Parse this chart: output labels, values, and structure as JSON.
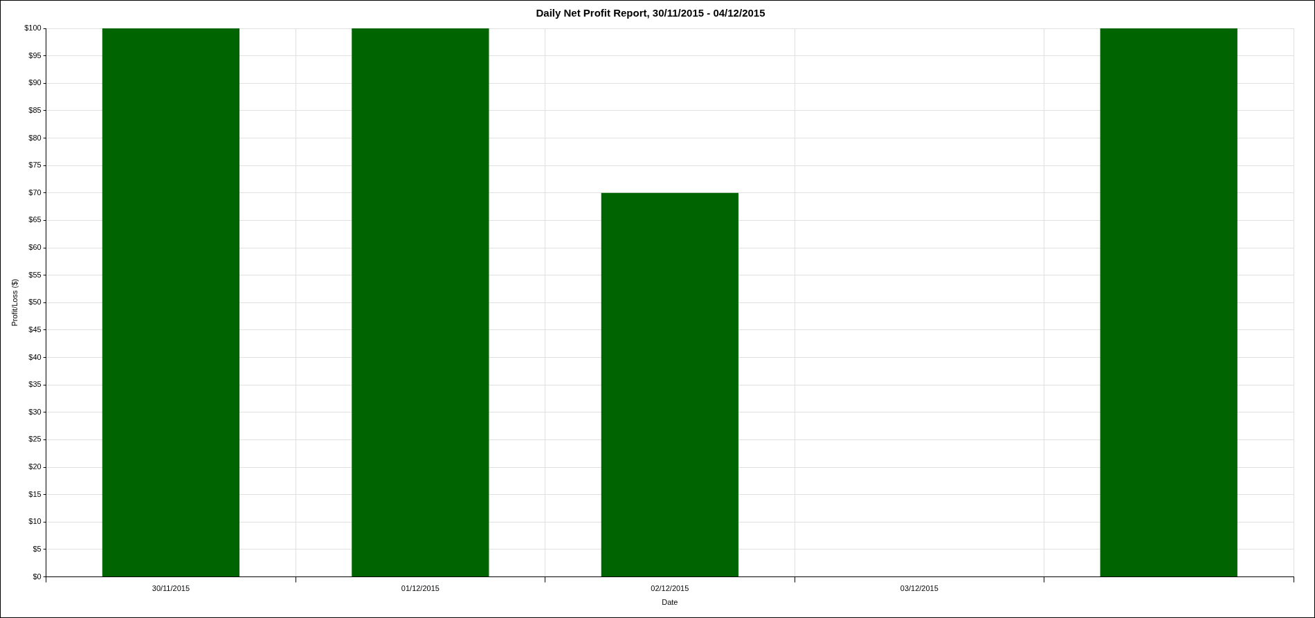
{
  "chart_data": {
    "type": "bar",
    "title": "Daily Net Profit Report, 30/11/2015 - 04/12/2015",
    "xlabel": "Date",
    "ylabel": "Profit/Loss ($)",
    "categories": [
      "30/11/2015",
      "01/12/2015",
      "02/12/2015",
      "03/12/2015",
      null
    ],
    "values": [
      100,
      100,
      70,
      0,
      100
    ],
    "color": "#006400",
    "ylim": [
      0,
      100
    ],
    "yticks": [
      {
        "value": 0,
        "label": "$0"
      },
      {
        "value": 5,
        "label": "$5"
      },
      {
        "value": 10,
        "label": "$10"
      },
      {
        "value": 15,
        "label": "$15"
      },
      {
        "value": 20,
        "label": "$20"
      },
      {
        "value": 25,
        "label": "$25"
      },
      {
        "value": 30,
        "label": "$30"
      },
      {
        "value": 35,
        "label": "$35"
      },
      {
        "value": 40,
        "label": "$40"
      },
      {
        "value": 45,
        "label": "$45"
      },
      {
        "value": 50,
        "label": "$50"
      },
      {
        "value": 55,
        "label": "$55"
      },
      {
        "value": 60,
        "label": "$60"
      },
      {
        "value": 65,
        "label": "$65"
      },
      {
        "value": 70,
        "label": "$70"
      },
      {
        "value": 75,
        "label": "$75"
      },
      {
        "value": 80,
        "label": "$80"
      },
      {
        "value": 85,
        "label": "$85"
      },
      {
        "value": 90,
        "label": "$90"
      },
      {
        "value": 95,
        "label": "$95"
      },
      {
        "value": 100,
        "label": "$100"
      }
    ],
    "grid": true,
    "legend": false
  }
}
